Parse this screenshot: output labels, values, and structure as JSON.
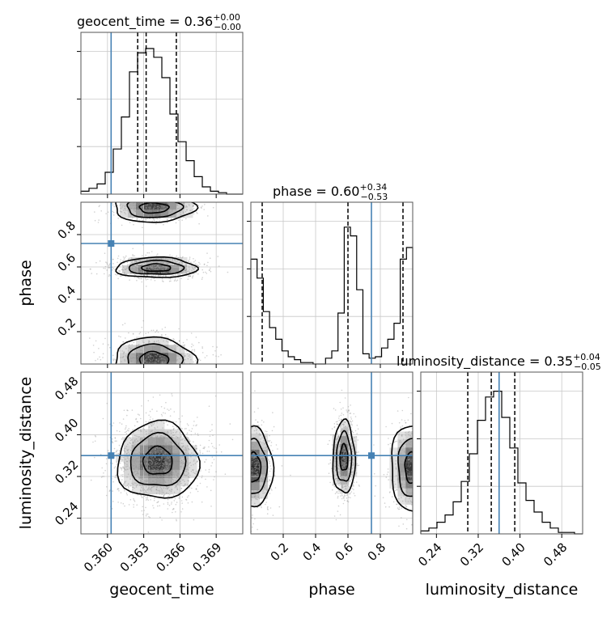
{
  "chart_data": {
    "type": "corner",
    "parameters": [
      "geocent_time",
      "phase",
      "luminosity_distance"
    ],
    "titles": {
      "geocent_time": {
        "label": "geocent_time",
        "median": "0.36",
        "plus": "+0.00",
        "minus": "−0.00"
      },
      "phase": {
        "label": "phase",
        "median": "0.60",
        "plus": "+0.34",
        "minus": "−0.53"
      },
      "luminosity_distance": {
        "label": "luminosity_distance",
        "median": "0.35",
        "plus": "+0.04",
        "minus": "−0.05"
      }
    },
    "axes": {
      "geocent_time": {
        "range": [
          0.3578,
          0.3712
        ],
        "ticks": [
          0.36,
          0.363,
          0.366,
          0.369
        ],
        "tick_labels": [
          "0.360",
          "0.363",
          "0.366",
          "0.369"
        ]
      },
      "phase": {
        "range": [
          0.0,
          1.0
        ],
        "ticks": [
          0.2,
          0.4,
          0.6,
          0.8
        ],
        "tick_labels": [
          "0.2",
          "0.4",
          "0.6",
          "0.8"
        ]
      },
      "luminosity_distance": {
        "range": [
          0.21,
          0.52
        ],
        "ticks": [
          0.24,
          0.32,
          0.4,
          0.48
        ],
        "tick_labels": [
          "0.24",
          "0.32",
          "0.40",
          "0.48"
        ]
      }
    },
    "truths": {
      "geocent_time": 0.3603,
      "phase": 0.745,
      "luminosity_distance": 0.36
    },
    "quantiles": {
      "geocent_time": [
        0.3625,
        0.3632,
        0.3657
      ],
      "phase": [
        0.07,
        0.6,
        0.94
      ],
      "luminosity_distance": [
        0.3,
        0.345,
        0.39
      ]
    },
    "histograms": {
      "geocent_time": [
        0.02,
        0.04,
        0.07,
        0.15,
        0.31,
        0.53,
        0.84,
        0.97,
        1.0,
        0.94,
        0.8,
        0.55,
        0.36,
        0.23,
        0.12,
        0.05,
        0.02,
        0.01,
        0.0,
        0.0
      ],
      "phase": [
        0.72,
        0.59,
        0.36,
        0.25,
        0.17,
        0.09,
        0.05,
        0.03,
        0.01,
        0.01,
        0.0,
        0.0,
        0.04,
        0.09,
        0.35,
        0.94,
        0.88,
        0.51,
        0.07,
        0.04,
        0.05,
        0.11,
        0.17,
        0.28,
        0.72,
        0.8
      ],
      "luminosity_distance": [
        0.02,
        0.04,
        0.08,
        0.13,
        0.22,
        0.36,
        0.55,
        0.78,
        0.94,
        0.98,
        0.8,
        0.59,
        0.35,
        0.23,
        0.15,
        0.08,
        0.04,
        0.01,
        0.01,
        0.0
      ]
    },
    "grid": true
  }
}
